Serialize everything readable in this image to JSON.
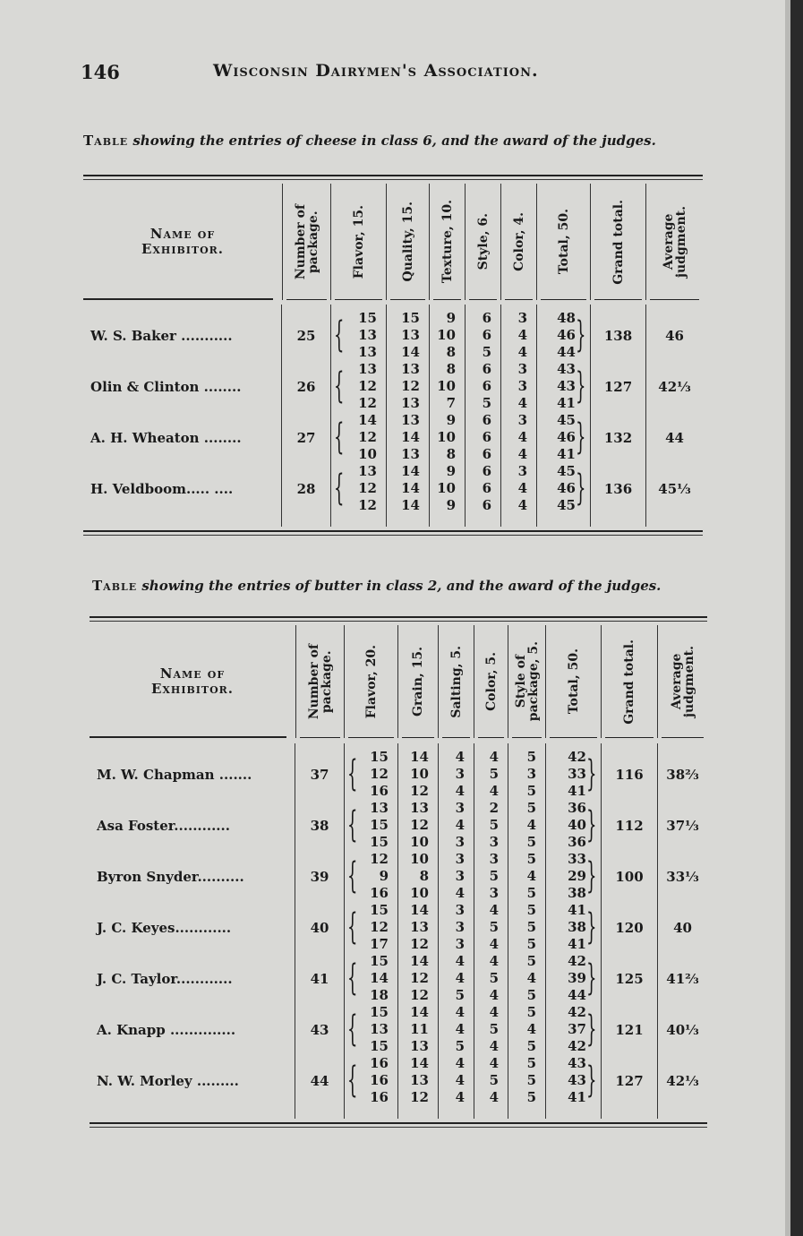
{
  "header": {
    "page_number": "146",
    "running_title": "Wisconsin Dairymen's Association."
  },
  "cheese_table": {
    "caption_lead": "Table",
    "caption_rest": "showing the entries of cheese in class 6, and the award of the judges.",
    "name_header": "Name of\nExhibitor.",
    "columns": [
      "Number of\npackage.",
      "Flavor, 15.",
      "Quality, 15.",
      "Texture, 10.",
      "Style, 6.",
      "Color, 4.",
      "Total, 50.",
      "Grand total.",
      "Average\njudgment."
    ],
    "rows": [
      {
        "name": "W. S. Baker ...........",
        "package": "25",
        "scores": [
          [
            "15",
            "15",
            "9",
            "6",
            "3",
            "48"
          ],
          [
            "13",
            "13",
            "10",
            "6",
            "4",
            "46"
          ],
          [
            "13",
            "14",
            "8",
            "5",
            "4",
            "44"
          ]
        ],
        "grand_total": "138",
        "average": "46"
      },
      {
        "name": "Olin & Clinton ........",
        "package": "26",
        "scores": [
          [
            "13",
            "13",
            "8",
            "6",
            "3",
            "43"
          ],
          [
            "12",
            "12",
            "10",
            "6",
            "3",
            "43"
          ],
          [
            "12",
            "13",
            "7",
            "5",
            "4",
            "41"
          ]
        ],
        "grand_total": "127",
        "average": "42⅓"
      },
      {
        "name": "A. H. Wheaton ........",
        "package": "27",
        "scores": [
          [
            "14",
            "13",
            "9",
            "6",
            "3",
            "45"
          ],
          [
            "12",
            "14",
            "10",
            "6",
            "4",
            "46"
          ],
          [
            "10",
            "13",
            "8",
            "6",
            "4",
            "41"
          ]
        ],
        "grand_total": "132",
        "average": "44"
      },
      {
        "name": "H. Veldboom..... ....",
        "package": "28",
        "scores": [
          [
            "13",
            "14",
            "9",
            "6",
            "3",
            "45"
          ],
          [
            "12",
            "14",
            "10",
            "6",
            "4",
            "46"
          ],
          [
            "12",
            "14",
            "9",
            "6",
            "4",
            "45"
          ]
        ],
        "grand_total": "136",
        "average": "45⅓"
      }
    ]
  },
  "butter_table": {
    "caption_lead": "Table",
    "caption_rest": "showing the entries of butter in class 2, and the award of the judges.",
    "name_header": "Name of\nExhibitor.",
    "columns": [
      "Number of\npackage.",
      "Flavor, 20.",
      "Grain, 15.",
      "Salting, 5.",
      "Color, 5.",
      "Style of\npackage, 5.",
      "Total, 50.",
      "Grand total.",
      "Average\njudgment."
    ],
    "rows": [
      {
        "name": "M. W. Chapman .......",
        "package": "37",
        "scores": [
          [
            "15",
            "14",
            "4",
            "4",
            "5",
            "42"
          ],
          [
            "12",
            "10",
            "3",
            "5",
            "3",
            "33"
          ],
          [
            "16",
            "12",
            "4",
            "4",
            "5",
            "41"
          ]
        ],
        "grand_total": "116",
        "average": "38⅔"
      },
      {
        "name": "Asa Foster............",
        "package": "38",
        "scores": [
          [
            "13",
            "13",
            "3",
            "2",
            "5",
            "36"
          ],
          [
            "15",
            "12",
            "4",
            "5",
            "4",
            "40"
          ],
          [
            "15",
            "10",
            "3",
            "3",
            "5",
            "36"
          ]
        ],
        "grand_total": "112",
        "average": "37⅓"
      },
      {
        "name": "Byron Snyder..........",
        "package": "39",
        "scores": [
          [
            "12",
            "10",
            "3",
            "3",
            "5",
            "33"
          ],
          [
            "9",
            "8",
            "3",
            "5",
            "4",
            "29"
          ],
          [
            "16",
            "10",
            "4",
            "3",
            "5",
            "38"
          ]
        ],
        "grand_total": "100",
        "average": "33⅓"
      },
      {
        "name": "J. C. Keyes............",
        "package": "40",
        "scores": [
          [
            "15",
            "14",
            "3",
            "4",
            "5",
            "41"
          ],
          [
            "12",
            "13",
            "3",
            "5",
            "5",
            "38"
          ],
          [
            "17",
            "12",
            "3",
            "4",
            "5",
            "41"
          ]
        ],
        "grand_total": "120",
        "average": "40"
      },
      {
        "name": "J. C. Taylor............",
        "package": "41",
        "scores": [
          [
            "15",
            "14",
            "4",
            "4",
            "5",
            "42"
          ],
          [
            "14",
            "12",
            "4",
            "5",
            "4",
            "39"
          ],
          [
            "18",
            "12",
            "5",
            "4",
            "5",
            "44"
          ]
        ],
        "grand_total": "125",
        "average": "41⅔"
      },
      {
        "name": "A. Knapp ..............",
        "package": "43",
        "scores": [
          [
            "15",
            "14",
            "4",
            "4",
            "5",
            "42"
          ],
          [
            "13",
            "11",
            "4",
            "5",
            "4",
            "37"
          ],
          [
            "15",
            "13",
            "5",
            "4",
            "5",
            "42"
          ]
        ],
        "grand_total": "121",
        "average": "40⅓"
      },
      {
        "name": "N. W. Morley .........",
        "package": "44",
        "scores": [
          [
            "16",
            "14",
            "4",
            "4",
            "5",
            "43"
          ],
          [
            "16",
            "13",
            "4",
            "5",
            "5",
            "43"
          ],
          [
            "16",
            "12",
            "4",
            "4",
            "5",
            "41"
          ]
        ],
        "grand_total": "127",
        "average": "42⅓"
      }
    ]
  }
}
